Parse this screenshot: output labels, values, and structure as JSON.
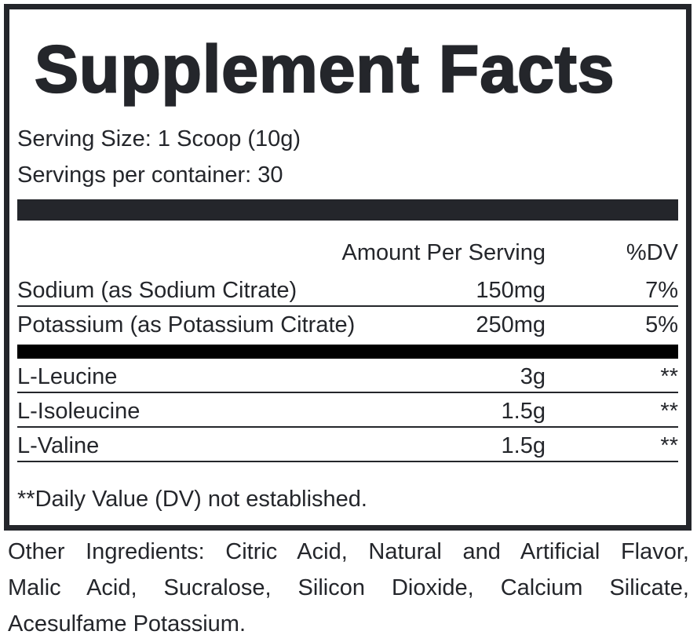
{
  "label": {
    "title": "Supplement Facts",
    "serving_size": "Serving Size: 1 Scoop (10g)",
    "servings_per_container": "Servings per container: 30",
    "columns": {
      "amount": "Amount Per Serving",
      "dv": "%DV"
    },
    "rows": [
      {
        "name": "Sodium (as Sodium Citrate)",
        "amount": "150mg",
        "dv": "7%"
      },
      {
        "name": "Potassium (as Potassium Citrate)",
        "amount": "250mg",
        "dv": "5%"
      },
      {
        "name": "L-Leucine",
        "amount": "3g",
        "dv": "**"
      },
      {
        "name": "L-Isoleucine",
        "amount": "1.5g",
        "dv": "**"
      },
      {
        "name": "L-Valine",
        "amount": "1.5g",
        "dv": "**"
      }
    ],
    "footnote": "**Daily Value (DV) not established.",
    "other_ingredients_lines": [
      "Other Ingredients: Citric Acid, Natural and Artificial Flavor,",
      "Malic Acid, Sucralose, Silicon Dioxide, Calcium Silicate,",
      "Acesulfame Potassium."
    ]
  },
  "colors": {
    "text": "#24262b",
    "divider_dark": "#24262b",
    "divider_black": "#000000",
    "background": "#ffffff"
  }
}
